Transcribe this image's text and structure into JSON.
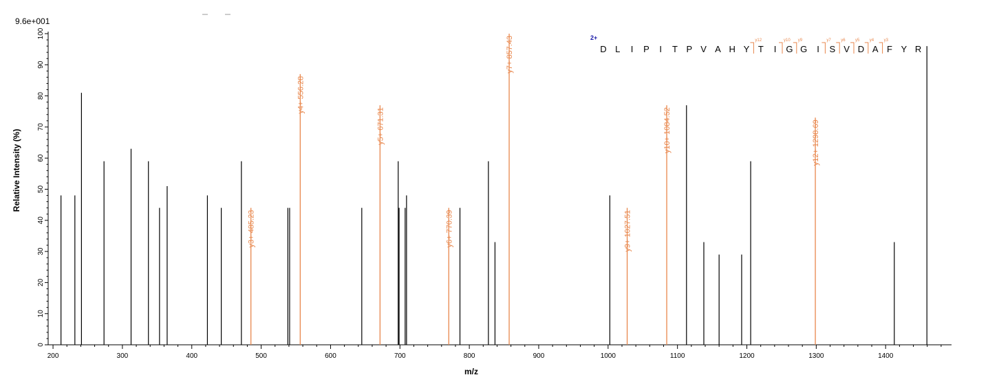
{
  "chart_data": {
    "type": "bar",
    "scale_label": "9.6e+001",
    "xlabel": "m/z",
    "ylabel": "Relative   Intensity (%)",
    "xlim": [
      193,
      1495
    ],
    "ylim": [
      0,
      100
    ],
    "x_ticks": [
      200,
      300,
      400,
      500,
      600,
      700,
      800,
      900,
      1000,
      1100,
      1200,
      1300,
      1400
    ],
    "x_tick_labels": [
      "200",
      "300",
      "400",
      "500",
      "600",
      "700",
      "800",
      "900",
      "1000",
      "1100",
      "1200",
      "1300",
      "1400"
    ],
    "y_ticks": [
      0,
      10,
      20,
      30,
      40,
      50,
      60,
      70,
      80,
      90,
      100
    ],
    "y_tick_labels": [
      "0",
      "10",
      "20",
      "30",
      "40",
      "50",
      "60",
      "70",
      "80",
      "90",
      "100"
    ],
    "colors": {
      "unassigned": "#000000",
      "annotated": "#e8864b",
      "charge": "#1a1aa8"
    },
    "unassigned_peaks": [
      {
        "mz": 211.5,
        "intensity": 48
      },
      {
        "mz": 231.5,
        "intensity": 48
      },
      {
        "mz": 241.0,
        "intensity": 81
      },
      {
        "mz": 273.5,
        "intensity": 59
      },
      {
        "mz": 312.5,
        "intensity": 63
      },
      {
        "mz": 337.5,
        "intensity": 59
      },
      {
        "mz": 353.5,
        "intensity": 44
      },
      {
        "mz": 364.5,
        "intensity": 51
      },
      {
        "mz": 422.5,
        "intensity": 48
      },
      {
        "mz": 442.5,
        "intensity": 44
      },
      {
        "mz": 471.5,
        "intensity": 59
      },
      {
        "mz": 538.5,
        "intensity": 44
      },
      {
        "mz": 541.0,
        "intensity": 44
      },
      {
        "mz": 645.0,
        "intensity": 44
      },
      {
        "mz": 697.5,
        "intensity": 59
      },
      {
        "mz": 698.8,
        "intensity": 44
      },
      {
        "mz": 707.5,
        "intensity": 44
      },
      {
        "mz": 709.5,
        "intensity": 48
      },
      {
        "mz": 786.5,
        "intensity": 44
      },
      {
        "mz": 827.5,
        "intensity": 59
      },
      {
        "mz": 837.0,
        "intensity": 33
      },
      {
        "mz": 1002.5,
        "intensity": 48
      },
      {
        "mz": 1113.0,
        "intensity": 77
      },
      {
        "mz": 1138.0,
        "intensity": 33
      },
      {
        "mz": 1160.0,
        "intensity": 29
      },
      {
        "mz": 1192.5,
        "intensity": 29
      },
      {
        "mz": 1205.5,
        "intensity": 59
      },
      {
        "mz": 1412.5,
        "intensity": 33
      },
      {
        "mz": 1459.5,
        "intensity": 96
      }
    ],
    "annotated_peaks": [
      {
        "mz": 485.23,
        "intensity": 44,
        "label": "y3+ 485.23"
      },
      {
        "mz": 556.28,
        "intensity": 87,
        "label": "y4+ 556.28"
      },
      {
        "mz": 671.31,
        "intensity": 77,
        "label": "y5+ 671.31"
      },
      {
        "mz": 770.39,
        "intensity": 44,
        "label": "y6+ 770.39"
      },
      {
        "mz": 857.43,
        "intensity": 100,
        "label": "y7+ 857.43"
      },
      {
        "mz": 1027.51,
        "intensity": 44,
        "label": "y9+ 1027.51"
      },
      {
        "mz": 1084.52,
        "intensity": 77,
        "label": "y10+ 1084.52"
      },
      {
        "mz": 1298.69,
        "intensity": 73,
        "label": "y12+ 1298.69"
      }
    ],
    "sequence": {
      "charge": "2+",
      "residues": [
        "D",
        "L",
        "I",
        "P",
        "I",
        "T",
        "P",
        "V",
        "A",
        "H",
        "Y",
        "T",
        "I",
        "G",
        "G",
        "I",
        "S",
        "V",
        "D",
        "A",
        "F",
        "Y",
        "R"
      ],
      "fragment_marks": [
        {
          "after_index": 10,
          "label": "y12"
        },
        {
          "after_index": 12,
          "label": "y10"
        },
        {
          "after_index": 13,
          "label": "y9"
        },
        {
          "after_index": 15,
          "label": "y7"
        },
        {
          "after_index": 16,
          "label": "y6"
        },
        {
          "after_index": 17,
          "label": "y5"
        },
        {
          "after_index": 18,
          "label": "y4"
        },
        {
          "after_index": 19,
          "label": "y3"
        }
      ]
    }
  }
}
